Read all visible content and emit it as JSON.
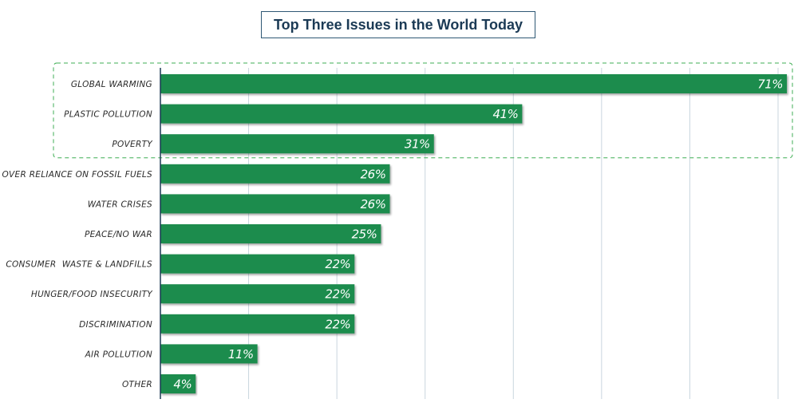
{
  "chart_data": {
    "type": "bar",
    "orientation": "horizontal",
    "title": "Top Three Issues in the World Today",
    "categories": [
      "GLOBAL WARMING",
      "PLASTIC POLLUTION",
      "POVERTY",
      "OVER RELIANCE ON FOSSIL FUELS",
      "WATER CRISES",
      "PEACE/NO WAR",
      "CONSUMER  WASTE & LANDFILLS",
      "HUNGER/FOOD INSECURITY",
      "DISCRIMINATION",
      "AIR POLLUTION",
      "OTHER"
    ],
    "values": [
      71,
      41,
      31,
      26,
      26,
      25,
      22,
      22,
      22,
      11,
      4
    ],
    "value_labels": [
      "71%",
      "41%",
      "31%",
      "26%",
      "26%",
      "25%",
      "22%",
      "22%",
      "22%",
      "11%",
      "4%"
    ],
    "xlim": [
      0,
      70
    ],
    "grid": true,
    "highlight": {
      "style": "dashed box",
      "categories": [
        "GLOBAL WARMING",
        "PLASTIC POLLUTION",
        "POVERTY"
      ]
    },
    "colors": {
      "bar": "#1f8c4e",
      "grid": "#c9d6de",
      "axis": "#1b3a55",
      "highlight": "#3fae54"
    }
  }
}
